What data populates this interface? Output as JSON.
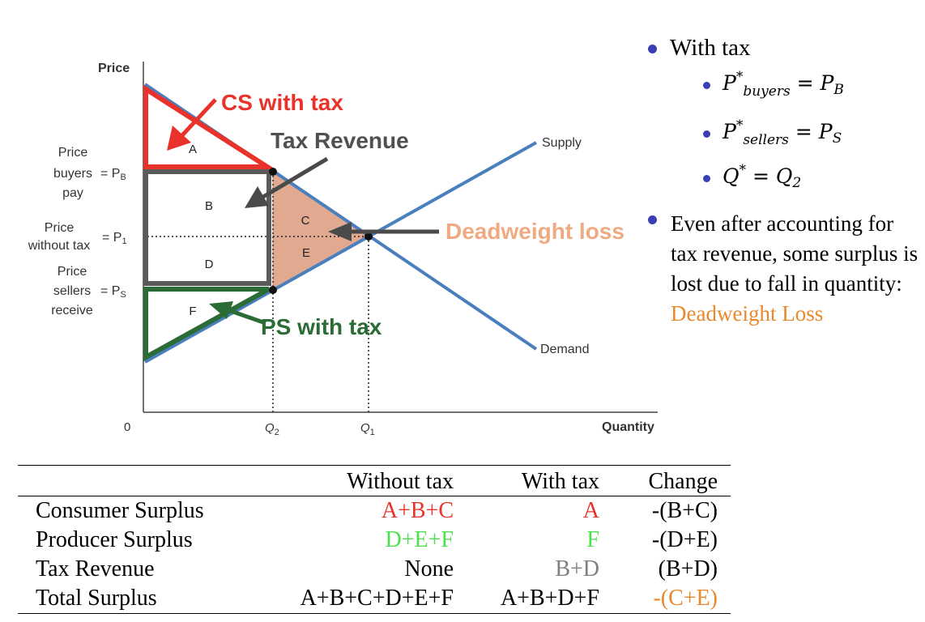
{
  "graph": {
    "y_axis_label": "Price",
    "x_axis_label": "Quantity",
    "origin_label": "0",
    "q2_label": "Q",
    "q2_sub": "2",
    "q1_label": "Q",
    "q1_sub": "1",
    "supply_label": "Supply",
    "demand_label": "Demand",
    "price_buyers": {
      "line1": "Price",
      "line2": "buyers",
      "line3": "pay",
      "eq": "= P",
      "sub": "B"
    },
    "price_notax": {
      "line1": "Price",
      "line2": "without tax",
      "eq": "= P",
      "sub": "1"
    },
    "price_sellers": {
      "line1": "Price",
      "line2": "sellers",
      "line3": "receive",
      "eq": "= P",
      "sub": "S"
    },
    "regions": {
      "a": "A",
      "b": "B",
      "c": "C",
      "d": "D",
      "e": "E",
      "f": "F"
    },
    "annotations": {
      "cs": "CS with tax",
      "tax": "Tax Revenue",
      "dwl": "Deadweight loss",
      "ps": "PS with tax"
    },
    "colors": {
      "curve": "#4a7fbd",
      "cs": "#e8322a",
      "ps": "#2b6b35",
      "tax": "#5a5a5a",
      "dwl_fill": "#e0a990",
      "dwl_text": "#efaa82"
    }
  },
  "bullets": {
    "with_tax": "With tax",
    "buyers_p": "P",
    "buyers_star": "*",
    "buyers_sub": "buyers",
    "buyers_eq": "= P",
    "buyers_rsub": "B",
    "sellers_p": "P",
    "sellers_star": "*",
    "sellers_sub": "sellers",
    "sellers_eq": "= P",
    "sellers_rsub": "S",
    "q_q": "Q",
    "q_star": "*",
    "q_eq": "= Q",
    "q_sub": "2",
    "note_main": "Even after accounting for tax revenue, some surplus is lost due to fall in quantity:",
    "note_highlight": "Deadweight Loss"
  },
  "table": {
    "headers": [
      "",
      "Without tax",
      "With tax",
      "Change"
    ],
    "rows": [
      {
        "label": "Consumer Surplus",
        "without": "A+B+C",
        "with": "A",
        "change": "-(B+C)"
      },
      {
        "label": "Producer Surplus",
        "without": "D+E+F",
        "with": "F",
        "change": "-(D+E)"
      },
      {
        "label": "Tax Revenue",
        "without": "None",
        "with": "B+D",
        "change": "(B+D)"
      },
      {
        "label": "Total Surplus",
        "without": "A+B+C+D+E+F",
        "with": "A+B+D+F",
        "change": "-(C+E)"
      }
    ]
  }
}
